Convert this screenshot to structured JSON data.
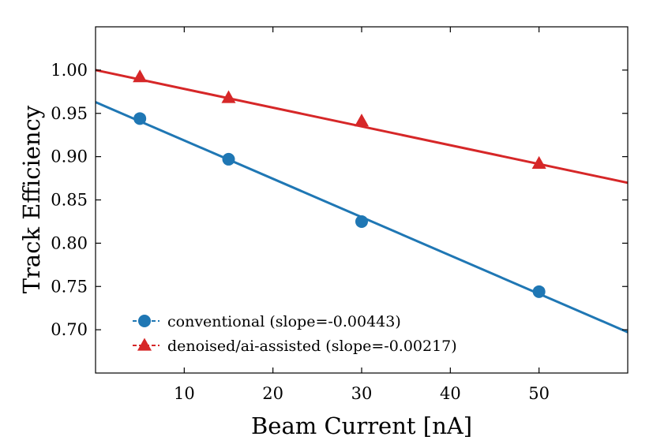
{
  "chart_data": {
    "type": "scatter",
    "xlabel": "Beam Current [nA]",
    "ylabel": "Track Efficiency",
    "xlim": [
      0,
      60
    ],
    "ylim": [
      0.65,
      1.05
    ],
    "xticks": [
      10,
      20,
      30,
      40,
      50
    ],
    "yticks": [
      0.7,
      0.75,
      0.8,
      0.85,
      0.9,
      0.95,
      1.0
    ],
    "xtick_labels": [
      "10",
      "20",
      "30",
      "40",
      "50"
    ],
    "ytick_labels": [
      "0.70",
      "0.75",
      "0.80",
      "0.85",
      "0.90",
      "0.95",
      "1.00"
    ],
    "grid": false,
    "legend_position": "lower-left",
    "series": [
      {
        "name": "conventional (slope=-0.00443)",
        "marker": "circle",
        "color": "#1f77b4",
        "x": [
          5,
          15,
          30,
          50
        ],
        "y": [
          0.944,
          0.897,
          0.825,
          0.744
        ],
        "fit": {
          "slope": -0.00443,
          "intercept": 0.963
        }
      },
      {
        "name": "denoised/ai-assisted (slope=-0.00217)",
        "marker": "triangle",
        "color": "#d62728",
        "x": [
          5,
          15,
          30,
          50
        ],
        "y": [
          0.992,
          0.968,
          0.941,
          0.892
        ],
        "fit": {
          "slope": -0.00217,
          "intercept": 1.0
        }
      }
    ]
  }
}
